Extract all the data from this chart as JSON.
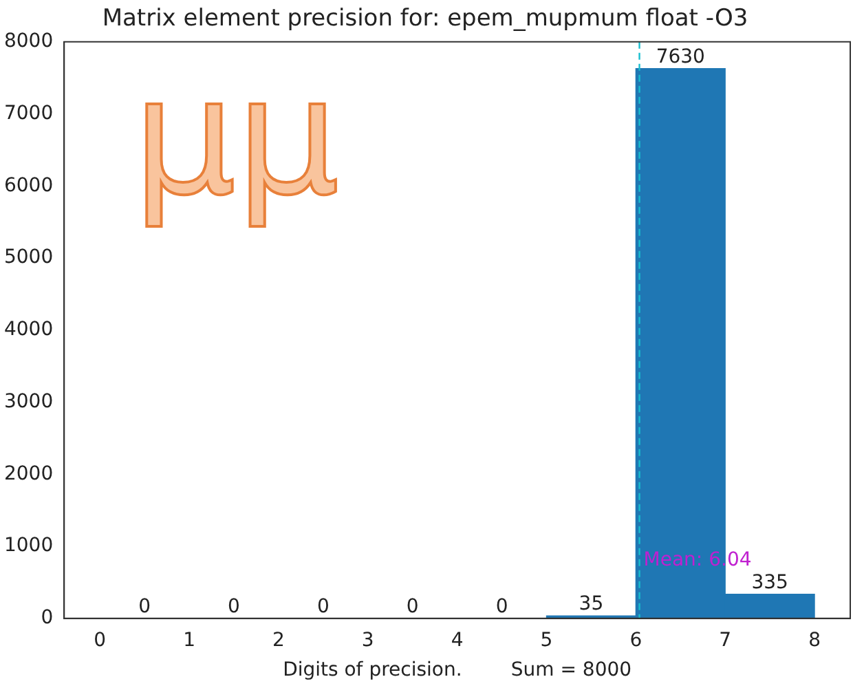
{
  "chart_data": {
    "type": "histogram",
    "title": "Matrix element precision for: epem_mupmum float -O3",
    "xlabel": "Digits of precision.        Sum = 8000",
    "bins": [
      0,
      1,
      2,
      3,
      4,
      5,
      6,
      7,
      8
    ],
    "values": [
      0,
      0,
      0,
      0,
      0,
      35,
      7630,
      335
    ],
    "color": "#1f77b4",
    "data_labels": true,
    "xlim": [
      -0.4,
      8.4
    ],
    "xticks": [
      0,
      1,
      2,
      3,
      4,
      5,
      6,
      7,
      8
    ],
    "ylim": [
      0,
      8000
    ],
    "yticks": [
      0,
      1000,
      2000,
      3000,
      4000,
      5000,
      6000,
      7000,
      8000
    ],
    "grid": false,
    "legend": false,
    "ref_lines": [
      {
        "axis": "x",
        "value": 6.04,
        "label": "Mean: 6.04",
        "color": "#17becf",
        "line_style": "dashed"
      }
    ],
    "annotations": [
      "μμ"
    ]
  }
}
